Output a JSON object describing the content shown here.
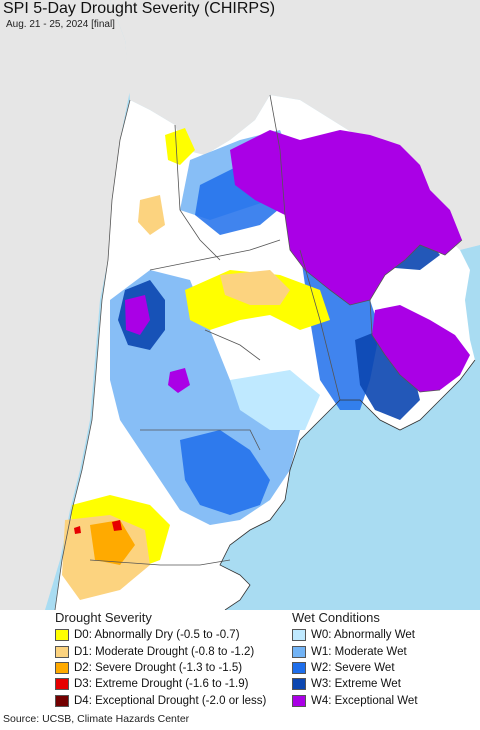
{
  "map": {
    "title": "SPI 5-Day Drought Severity (CHIRPS)",
    "subtitle": "Aug. 21 - 25, 2024 [final]",
    "colors": {
      "ocean": "#a9dcf2",
      "land_outside": "#e6e6e6",
      "no_data": "#ffffff",
      "border": "#555555"
    }
  },
  "legend": {
    "drought": {
      "heading": "Drought Severity",
      "items": [
        {
          "label": "D0: Abnormally Dry (-0.5 to -0.7)",
          "color": "#ffff00"
        },
        {
          "label": "D1: Moderate Drought (-0.8 to -1.2)",
          "color": "#fcd37f"
        },
        {
          "label": "D2: Severe Drought (-1.3 to -1.5)",
          "color": "#ffaa00"
        },
        {
          "label": "D3: Extreme Drought (-1.6 to -1.9)",
          "color": "#e60000"
        },
        {
          "label": "D4: Exceptional Drought (-2.0 or less)",
          "color": "#730000"
        }
      ]
    },
    "wet": {
      "heading": "Wet Conditions",
      "items": [
        {
          "label": "W0: Abnormally Wet",
          "color": "#bfe9ff"
        },
        {
          "label": "W1: Moderate Wet",
          "color": "#72b3f5"
        },
        {
          "label": "W2: Severe Wet",
          "color": "#1e6eeb"
        },
        {
          "label": "W3: Extreme Wet",
          "color": "#0b46b0"
        },
        {
          "label": "W4: Exceptional Wet",
          "color": "#aa00e6"
        }
      ]
    }
  },
  "source": "Source: UCSB, Climate Hazards Center"
}
